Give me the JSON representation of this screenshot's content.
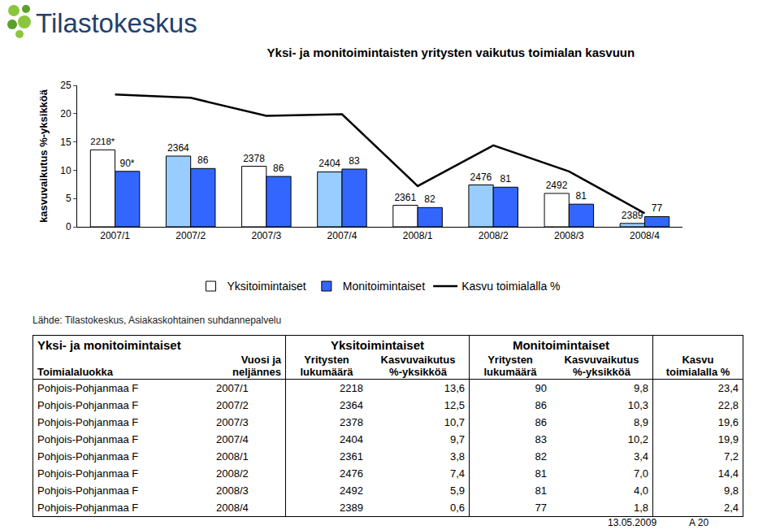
{
  "header": {
    "logo": "Tilastokeskus"
  },
  "chart_data": {
    "type": "bar",
    "title": "Yksi- ja monitoimintaisten yritysten vaikutus toimialan kasvuun",
    "y_label": "kasvuvaikutus %-yksikköä",
    "categories": [
      "2007/1",
      "2007/2",
      "2007/3",
      "2007/4",
      "2008/1",
      "2008/2",
      "2008/3",
      "2008/4"
    ],
    "series": [
      {
        "name": "Yksitoimintaiset",
        "type": "bar",
        "color": "#99ccff",
        "colors": [
          "#ffffff",
          "#99ccff",
          "#ffffff",
          "#99ccff",
          "#ffffff",
          "#99ccff",
          "#ffffff",
          "#99ccff"
        ],
        "values": [
          13.6,
          12.5,
          10.7,
          9.7,
          3.8,
          7.4,
          5.9,
          0.6
        ],
        "count_labels": [
          "2218*",
          "2364",
          "2378",
          "2404",
          "2361",
          "2476",
          "2492",
          "2389"
        ]
      },
      {
        "name": "Monitoimintaiset",
        "type": "bar",
        "color": "#3366ff",
        "values": [
          9.8,
          10.3,
          8.9,
          10.2,
          3.4,
          7.0,
          4.0,
          1.8
        ],
        "count_labels": [
          "90*",
          "86",
          "86",
          "83",
          "82",
          "81",
          "81",
          "77"
        ]
      },
      {
        "name": "Kasvu toimialalla %",
        "type": "line",
        "color": "#000000",
        "values": [
          23.4,
          22.8,
          19.6,
          19.9,
          7.2,
          14.4,
          9.8,
          2.4
        ]
      }
    ],
    "ylim": [
      0,
      25
    ],
    "yticks": [
      0,
      5,
      10,
      15,
      20,
      25
    ],
    "grid": false,
    "legend": "bottom"
  },
  "source": "Lähde: Tilastokeskus, Asiakaskohtainen suhdannepalvelu",
  "table": {
    "group_headers": [
      "Yksi- ja monitoimintaiset",
      "Yksitoimintaiset",
      "Monitoimintaiset"
    ],
    "columns": [
      [
        "Toimialaluokka"
      ],
      [
        "Vuosi ja",
        "neljännes"
      ],
      [
        "Yritysten",
        "lukumäärä"
      ],
      [
        "Kasvuvaikutus",
        "%-yksikköä"
      ],
      [
        "Yritysten",
        "lukumäärä"
      ],
      [
        "Kasvuvaikutus",
        "%-yksikköä"
      ],
      [
        "Kasvu",
        "toimialalla %"
      ]
    ],
    "rows": [
      [
        "Pohjois-Pohjanmaa F",
        "2007/1",
        "2218",
        "13,6",
        "90",
        "9,8",
        "23,4"
      ],
      [
        "Pohjois-Pohjanmaa F",
        "2007/2",
        "2364",
        "12,5",
        "86",
        "10,3",
        "22,8"
      ],
      [
        "Pohjois-Pohjanmaa F",
        "2007/3",
        "2378",
        "10,7",
        "86",
        "8,9",
        "19,6"
      ],
      [
        "Pohjois-Pohjanmaa F",
        "2007/4",
        "2404",
        "9,7",
        "83",
        "10,2",
        "19,9"
      ],
      [
        "Pohjois-Pohjanmaa F",
        "2008/1",
        "2361",
        "3,8",
        "82",
        "3,4",
        "7,2"
      ],
      [
        "Pohjois-Pohjanmaa F",
        "2008/2",
        "2476",
        "7,4",
        "81",
        "7,0",
        "14,4"
      ],
      [
        "Pohjois-Pohjanmaa F",
        "2008/3",
        "2492",
        "5,9",
        "81",
        "4,0",
        "9,8"
      ],
      [
        "Pohjois-Pohjanmaa F",
        "2008/4",
        "2389",
        "0,6",
        "77",
        "1,8",
        "2,4"
      ]
    ]
  },
  "footer": {
    "date": "13.05.2009",
    "page": "A 20"
  }
}
